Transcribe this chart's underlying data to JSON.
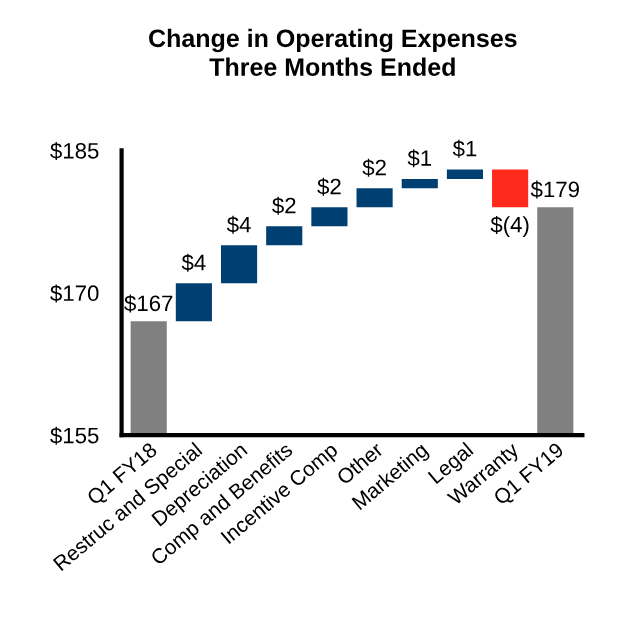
{
  "chart_data": {
    "type": "bar",
    "title": "Change in Operating Expenses",
    "subtitle": "Three Months Ended",
    "categories": [
      "Q1 FY18",
      "Restruc and Special",
      "Depreciation",
      "Comp and Benefits",
      "Incentive Comp",
      "Other",
      "Marketing",
      "Legal",
      "Warranty",
      "Q1 FY19"
    ],
    "values": [
      167,
      4,
      4,
      2,
      2,
      2,
      1,
      1,
      -4,
      179
    ],
    "base": [
      0,
      167,
      171,
      175,
      177,
      179,
      181,
      182,
      183,
      0
    ],
    "colors": [
      "#808080",
      "#003f72",
      "#003f72",
      "#003f72",
      "#003f72",
      "#003f72",
      "#003f72",
      "#003f72",
      "#ff2a1c",
      "#808080"
    ],
    "value_labels": [
      "$167",
      "$4",
      "$4",
      "$2",
      "$2",
      "$2",
      "$1",
      "$1",
      "$(4)",
      "$179"
    ],
    "ylim": [
      155,
      185
    ],
    "yticks": [
      {
        "value": 155,
        "label": "$155"
      },
      {
        "value": 170,
        "label": "$170"
      },
      {
        "value": 185,
        "label": "$185"
      }
    ],
    "grid": false,
    "legend": false
  }
}
